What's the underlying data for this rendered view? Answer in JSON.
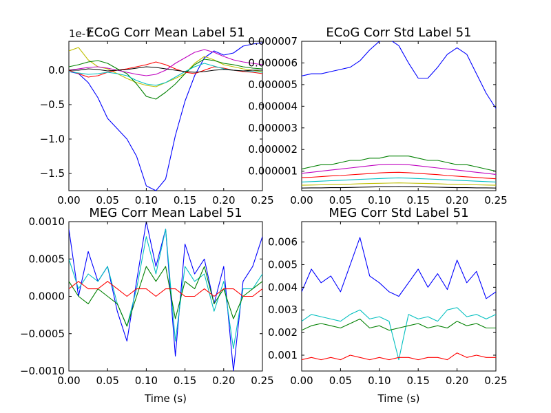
{
  "figure": {
    "x_unit_label": "Time (s)"
  },
  "chart_data": [
    {
      "type": "line",
      "title": "ECoG Corr Mean Label 51",
      "xlabel": "",
      "ylabel": "",
      "offset_text": "1e-7",
      "xlim": [
        0.0,
        0.25
      ],
      "ylim": [
        -1.75,
        0.42
      ],
      "xticks": [
        0.0,
        0.05,
        0.1,
        0.15,
        0.2,
        0.25
      ],
      "xtick_labels": [
        "0.00",
        "0.05",
        "0.10",
        "0.15",
        "0.20",
        "0.25"
      ],
      "yticks": [
        0.0,
        -0.5,
        -1.0,
        -1.5
      ],
      "ytick_labels": [
        "0.0",
        "−0.5",
        "−1.0",
        "−1.5"
      ],
      "x": [
        0.0,
        0.0125,
        0.025,
        0.0375,
        0.05,
        0.0625,
        0.075,
        0.0875,
        0.1,
        0.1125,
        0.125,
        0.1375,
        0.15,
        0.1625,
        0.175,
        0.1875,
        0.2,
        0.2125,
        0.225,
        0.2375,
        0.25
      ],
      "series": [
        {
          "color": "#0000ff",
          "values": [
            -0.02,
            -0.05,
            -0.18,
            -0.4,
            -0.7,
            -0.85,
            -1.0,
            -1.25,
            -1.68,
            -1.75,
            -1.58,
            -0.95,
            -0.45,
            -0.08,
            0.18,
            0.28,
            0.22,
            0.25,
            0.35,
            0.38,
            0.4
          ]
        },
        {
          "color": "#bfbf00",
          "values": [
            0.28,
            0.33,
            0.15,
            0.05,
            0.02,
            -0.05,
            -0.12,
            -0.18,
            -0.22,
            -0.24,
            -0.18,
            -0.12,
            -0.05,
            0.1,
            0.2,
            0.15,
            0.08,
            0.05,
            0.02,
            0.0,
            -0.02
          ]
        },
        {
          "color": "#008000",
          "values": [
            0.05,
            0.08,
            0.12,
            0.14,
            0.1,
            0.02,
            -0.05,
            -0.2,
            -0.38,
            -0.42,
            -0.32,
            -0.2,
            -0.05,
            0.08,
            0.16,
            0.14,
            0.1,
            0.08,
            0.05,
            0.03,
            0.02
          ]
        },
        {
          "color": "#ff0000",
          "values": [
            0.0,
            -0.05,
            -0.1,
            -0.08,
            -0.03,
            0.0,
            0.02,
            0.05,
            0.08,
            0.12,
            0.08,
            0.02,
            -0.03,
            -0.05,
            0.0,
            0.05,
            0.03,
            0.0,
            -0.02,
            -0.03,
            -0.05
          ]
        },
        {
          "color": "#00bfbf",
          "values": [
            -0.02,
            -0.04,
            -0.06,
            -0.05,
            -0.03,
            -0.05,
            -0.08,
            -0.15,
            -0.2,
            -0.22,
            -0.18,
            -0.1,
            -0.02,
            0.05,
            0.1,
            0.06,
            0.02,
            0.0,
            -0.01,
            -0.02,
            -0.03
          ]
        },
        {
          "color": "#bf00bf",
          "values": [
            0.0,
            0.02,
            0.04,
            0.05,
            0.03,
            0.0,
            -0.03,
            -0.06,
            -0.08,
            -0.06,
            0.0,
            0.1,
            0.18,
            0.26,
            0.3,
            0.26,
            0.2,
            0.15,
            0.12,
            0.1,
            0.08
          ]
        },
        {
          "color": "#000000",
          "values": [
            0.0,
            0.0,
            0.02,
            0.01,
            -0.01,
            0.0,
            0.01,
            0.03,
            0.05,
            0.04,
            0.02,
            0.0,
            -0.02,
            -0.03,
            -0.02,
            0.0,
            0.01,
            0.0,
            -0.01,
            0.0,
            0.0
          ]
        }
      ]
    },
    {
      "type": "line",
      "title": "ECoG Corr Std Label 51",
      "xlabel": "",
      "ylabel": "",
      "xlim": [
        0.0,
        0.25
      ],
      "ylim": [
        1e-07,
        7e-06
      ],
      "xticks": [
        0.0,
        0.05,
        0.1,
        0.15,
        0.2,
        0.25
      ],
      "xtick_labels": [
        "0.00",
        "0.05",
        "0.10",
        "0.15",
        "0.20",
        "0.25"
      ],
      "yticks": [
        1e-06,
        2e-06,
        3e-06,
        4e-06,
        5e-06,
        6e-06,
        7e-06
      ],
      "ytick_labels": [
        "0.000001",
        "0.000002",
        "0.000003",
        "0.000004",
        "0.000005",
        "0.000006",
        "0.000007"
      ],
      "x": [
        0.0,
        0.0125,
        0.025,
        0.0375,
        0.05,
        0.0625,
        0.075,
        0.0875,
        0.1,
        0.1125,
        0.125,
        0.1375,
        0.15,
        0.1625,
        0.175,
        0.1875,
        0.2,
        0.2125,
        0.225,
        0.2375,
        0.25
      ],
      "series": [
        {
          "color": "#0000ff",
          "values": [
            5.4e-06,
            5.5e-06,
            5.5e-06,
            5.6e-06,
            5.7e-06,
            5.8e-06,
            6.1e-06,
            6.6e-06,
            7e-06,
            7.1e-06,
            6.8e-06,
            6e-06,
            5.3e-06,
            5.3e-06,
            5.8e-06,
            6.4e-06,
            6.7e-06,
            6.4e-06,
            5.5e-06,
            4.6e-06,
            3.9e-06
          ]
        },
        {
          "color": "#008000",
          "values": [
            1.1e-06,
            1.2e-06,
            1.3e-06,
            1.3e-06,
            1.4e-06,
            1.5e-06,
            1.5e-06,
            1.6e-06,
            1.6e-06,
            1.7e-06,
            1.7e-06,
            1.7e-06,
            1.6e-06,
            1.5e-06,
            1.5e-06,
            1.4e-06,
            1.3e-06,
            1.3e-06,
            1.2e-06,
            1.1e-06,
            1e-06
          ]
        },
        {
          "color": "#bf00bf",
          "values": [
            9e-07,
            9.5e-07,
            1e-06,
            1.05e-06,
            1.1e-06,
            1.15e-06,
            1.2e-06,
            1.25e-06,
            1.3e-06,
            1.32e-06,
            1.32e-06,
            1.3e-06,
            1.25e-06,
            1.2e-06,
            1.15e-06,
            1.1e-06,
            1.05e-06,
            1e-06,
            9.5e-07,
            9e-07,
            8.5e-07
          ]
        },
        {
          "color": "#ff0000",
          "values": [
            7e-07,
            7.2e-07,
            7.5e-07,
            7.8e-07,
            8e-07,
            8.3e-07,
            8.6e-07,
            8.9e-07,
            9.2e-07,
            9.4e-07,
            9.5e-07,
            9.3e-07,
            9e-07,
            8.7e-07,
            8.4e-07,
            8e-07,
            7.7e-07,
            7.4e-07,
            7.1e-07,
            6.8e-07,
            6.5e-07
          ]
        },
        {
          "color": "#00bfbf",
          "values": [
            5e-07,
            5.2e-07,
            5.4e-07,
            5.6e-07,
            5.8e-07,
            6e-07,
            6.2e-07,
            6.4e-07,
            6.6e-07,
            6.8e-07,
            6.9e-07,
            6.8e-07,
            6.6e-07,
            6.4e-07,
            6.2e-07,
            6e-07,
            5.8e-07,
            5.6e-07,
            5.4e-07,
            5.2e-07,
            5e-07
          ]
        },
        {
          "color": "#bfbf00",
          "values": [
            3.5e-07,
            3.6e-07,
            3.7e-07,
            3.8e-07,
            3.9e-07,
            4e-07,
            4.2e-07,
            4.3e-07,
            4.4e-07,
            4.5e-07,
            4.6e-07,
            4.5e-07,
            4.4e-07,
            4.3e-07,
            4.2e-07,
            4e-07,
            3.9e-07,
            3.8e-07,
            3.7e-07,
            3.6e-07,
            3.5e-07
          ]
        },
        {
          "color": "#000000",
          "values": [
            2.2e-07,
            2.3e-07,
            2.3e-07,
            2.4e-07,
            2.4e-07,
            2.5e-07,
            2.6e-07,
            2.7e-07,
            2.8e-07,
            2.8e-07,
            2.9e-07,
            2.8e-07,
            2.8e-07,
            2.7e-07,
            2.6e-07,
            2.5e-07,
            2.4e-07,
            2.4e-07,
            2.3e-07,
            2.3e-07,
            2.2e-07
          ]
        }
      ]
    },
    {
      "type": "line",
      "title": "MEG Corr Mean Label 51",
      "xlabel": "Time (s)",
      "ylabel": "",
      "xlim": [
        0.0,
        0.25
      ],
      "ylim": [
        -0.001,
        0.001
      ],
      "xticks": [
        0.0,
        0.05,
        0.1,
        0.15,
        0.2,
        0.25
      ],
      "xtick_labels": [
        "0.00",
        "0.05",
        "0.10",
        "0.15",
        "0.20",
        "0.25"
      ],
      "yticks": [
        0.001,
        0.0005,
        0.0,
        -0.0005,
        -0.001
      ],
      "ytick_labels": [
        "0.0010",
        "0.0005",
        "0.0000",
        "−0.0005",
        "−0.0010"
      ],
      "x": [
        0.0,
        0.0125,
        0.025,
        0.0375,
        0.05,
        0.0625,
        0.075,
        0.0875,
        0.1,
        0.1125,
        0.125,
        0.1375,
        0.15,
        0.1625,
        0.175,
        0.1875,
        0.2,
        0.2125,
        0.225,
        0.2375,
        0.25
      ],
      "series": [
        {
          "color": "#0000ff",
          "values": [
            0.0009,
            0.0,
            0.0006,
            0.0002,
            0.0004,
            -0.0002,
            -0.0006,
            0.0002,
            0.001,
            0.0004,
            0.0009,
            -0.0008,
            0.0007,
            0.0003,
            0.0005,
            -0.0001,
            0.0004,
            -0.001,
            0.0002,
            0.0004,
            0.0008
          ]
        },
        {
          "color": "#00bfbf",
          "values": [
            0.0005,
            0.0001,
            0.0003,
            0.0002,
            0.0004,
            -0.0001,
            -0.0004,
            0.0001,
            0.0008,
            0.0003,
            0.0009,
            -0.0006,
            0.0004,
            0.0002,
            0.0003,
            -0.0002,
            0.0002,
            -0.0007,
            0.0001,
            0.0001,
            0.0003
          ]
        },
        {
          "color": "#008000",
          "values": [
            0.0002,
            0.0,
            -0.0001,
            0.0001,
            0.0,
            -0.0001,
            -0.0004,
            0.0,
            0.0004,
            0.0002,
            0.0004,
            -0.0003,
            0.0002,
            0.0001,
            0.0004,
            -0.0001,
            0.0001,
            -0.0003,
            0.0,
            0.0001,
            0.0002
          ]
        },
        {
          "color": "#ff0000",
          "values": [
            0.0001,
            0.0002,
            0.0001,
            0.0001,
            0.0002,
            0.0001,
            0.0,
            0.0001,
            0.0001,
            0.0,
            0.0001,
            0.0001,
            0.0,
            0.0,
            0.0001,
            0.0,
            0.0001,
            0.0001,
            0.0,
            0.0,
            0.0001
          ]
        }
      ]
    },
    {
      "type": "line",
      "title": "MEG Corr Std Label 51",
      "xlabel": "Time (s)",
      "ylabel": "",
      "xlim": [
        0.0,
        0.25
      ],
      "ylim": [
        0.0003,
        0.0069
      ],
      "xticks": [
        0.0,
        0.05,
        0.1,
        0.15,
        0.2,
        0.25
      ],
      "xtick_labels": [
        "0.00",
        "0.05",
        "0.10",
        "0.15",
        "0.20",
        "0.25"
      ],
      "yticks": [
        0.001,
        0.002,
        0.003,
        0.004,
        0.005,
        0.006
      ],
      "ytick_labels": [
        "0.001",
        "0.002",
        "0.003",
        "0.004",
        "0.005",
        "0.006"
      ],
      "x": [
        0.0,
        0.0125,
        0.025,
        0.0375,
        0.05,
        0.0625,
        0.075,
        0.0875,
        0.1,
        0.1125,
        0.125,
        0.1375,
        0.15,
        0.1625,
        0.175,
        0.1875,
        0.2,
        0.2125,
        0.225,
        0.2375,
        0.25
      ],
      "series": [
        {
          "color": "#0000ff",
          "values": [
            0.0038,
            0.0048,
            0.0042,
            0.0045,
            0.0038,
            0.005,
            0.0062,
            0.0045,
            0.0042,
            0.0038,
            0.0036,
            0.0042,
            0.0048,
            0.004,
            0.0046,
            0.0039,
            0.0052,
            0.0042,
            0.0047,
            0.0035,
            0.0038
          ]
        },
        {
          "color": "#00bfbf",
          "values": [
            0.0025,
            0.0028,
            0.0027,
            0.0026,
            0.0025,
            0.0028,
            0.003,
            0.0026,
            0.0027,
            0.0025,
            0.0008,
            0.0028,
            0.0026,
            0.0027,
            0.0025,
            0.003,
            0.0031,
            0.0027,
            0.0028,
            0.0026,
            0.0028
          ]
        },
        {
          "color": "#008000",
          "values": [
            0.0021,
            0.0023,
            0.0024,
            0.0023,
            0.0022,
            0.0024,
            0.0026,
            0.0022,
            0.0023,
            0.0021,
            0.0022,
            0.0023,
            0.0024,
            0.0022,
            0.0023,
            0.0022,
            0.0025,
            0.0023,
            0.0024,
            0.0022,
            0.0022
          ]
        },
        {
          "color": "#ff0000",
          "values": [
            0.0008,
            0.0009,
            0.0008,
            0.0009,
            0.0008,
            0.001,
            0.0009,
            0.0008,
            0.0009,
            0.0008,
            0.0009,
            0.0009,
            0.0008,
            0.0009,
            0.0009,
            0.0008,
            0.0011,
            0.0009,
            0.001,
            0.0009,
            0.0009
          ]
        }
      ]
    }
  ]
}
